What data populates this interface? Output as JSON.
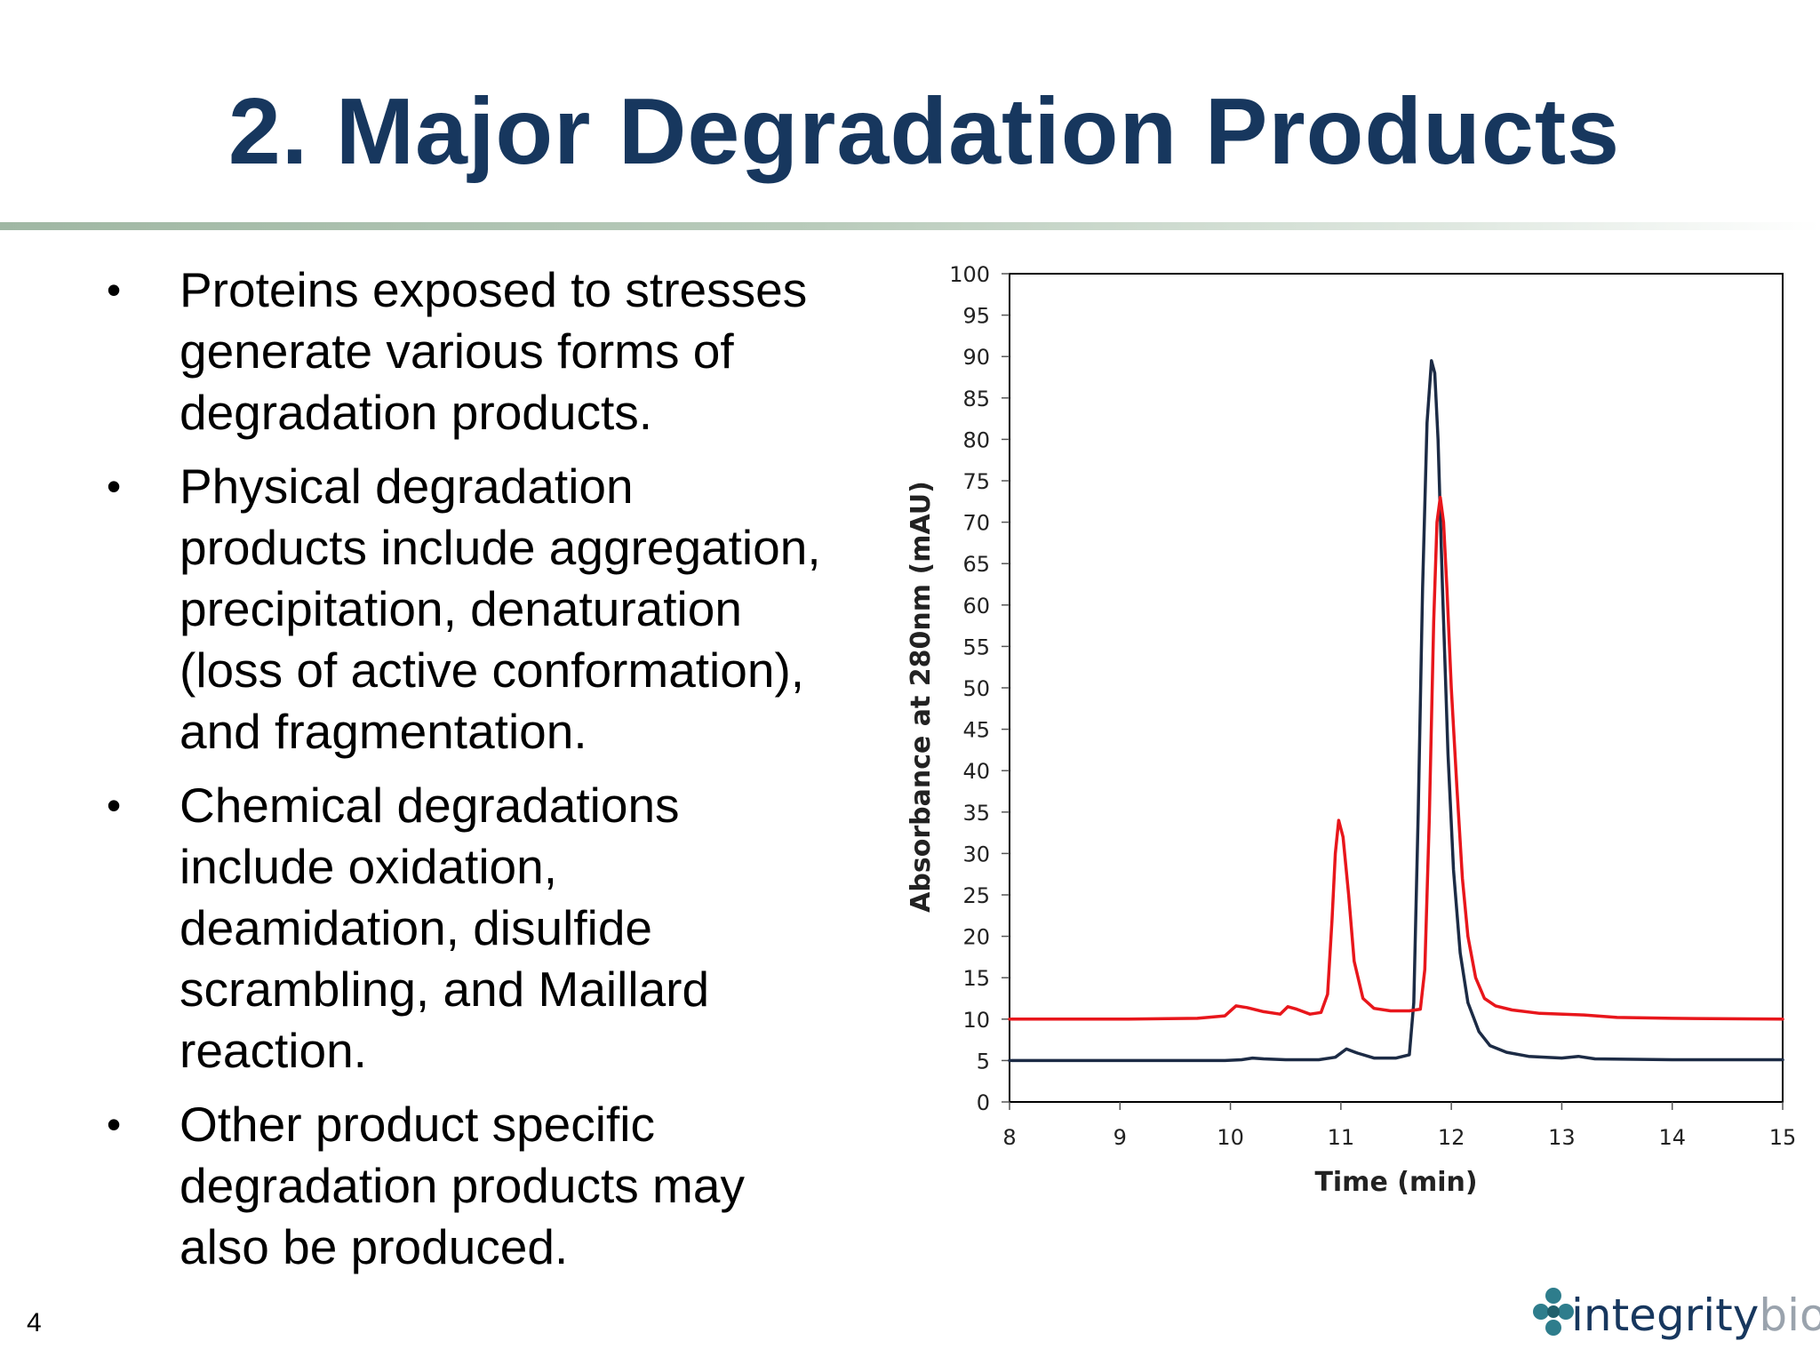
{
  "slide": {
    "title": "2. Major Degradation Products",
    "page_number": "4",
    "logo": {
      "text_primary": "integrity",
      "text_secondary": "bio",
      "icon": "molecule-cross-icon",
      "colors": {
        "primary": "#17375e",
        "secondary": "#9aa3ad",
        "icon": "#2e7d8c"
      }
    },
    "bullets": [
      {
        "text": "Proteins exposed to stresses generate various forms of degradation products.",
        "lines": [
          "Proteins exposed to stresses",
          "generate various forms of",
          "degradation products."
        ]
      },
      {
        "text": "Physical degradation products include aggregation, precipitation, denaturation (loss of active conformation), and fragmentation.",
        "lines": [
          "Physical degradation",
          "products include aggregation,",
          "precipitation, denaturation",
          "(loss of active conformation),",
          "and fragmentation."
        ]
      },
      {
        "text": "Chemical degradations include oxidation, deamidation, disulfide scrambling, and Maillard reaction.",
        "lines": [
          "Chemical degradations",
          "include oxidation,",
          "deamidation, disulfide",
          "scrambling, and Maillard",
          "reaction."
        ]
      },
      {
        "text": "Other product specific degradation products may also be produced.",
        "lines": [
          "Other product specific",
          "degradation products may",
          "also be produced."
        ]
      }
    ],
    "bullet_symbol": "•",
    "colors": {
      "title": "#17375e",
      "divider": "#9fb7a3",
      "text": "#000000"
    }
  },
  "chart_data": {
    "type": "line",
    "xlabel": "Time (min)",
    "ylabel": "Absorbance at 280nm (mAU)",
    "xlim": [
      8,
      15
    ],
    "ylim": [
      0,
      100
    ],
    "xticks": [
      8,
      9,
      10,
      11,
      12,
      13,
      14,
      15
    ],
    "yticks": [
      0,
      5,
      10,
      15,
      20,
      25,
      30,
      35,
      40,
      45,
      50,
      55,
      60,
      65,
      70,
      75,
      80,
      85,
      90,
      95,
      100
    ],
    "grid": false,
    "legend": false,
    "series": [
      {
        "color": "#1c2b45",
        "x": [
          8.0,
          9.0,
          9.95,
          10.1,
          10.2,
          10.3,
          10.5,
          10.8,
          10.95,
          11.05,
          11.15,
          11.3,
          11.5,
          11.62,
          11.66,
          11.7,
          11.74,
          11.78,
          11.82,
          11.85,
          11.88,
          11.92,
          11.97,
          12.02,
          12.08,
          12.15,
          12.25,
          12.35,
          12.5,
          12.7,
          13.0,
          13.15,
          13.3,
          14.0,
          15.0
        ],
        "y": [
          5,
          5,
          5,
          5.1,
          5.3,
          5.2,
          5.1,
          5.1,
          5.4,
          6.4,
          5.9,
          5.3,
          5.3,
          5.7,
          12,
          35,
          62,
          82,
          89.5,
          88,
          80,
          62,
          42,
          28,
          18,
          12,
          8.5,
          6.8,
          6.0,
          5.5,
          5.3,
          5.5,
          5.2,
          5.1,
          5.1
        ]
      },
      {
        "color": "#e8161b",
        "x": [
          8.0,
          9.0,
          9.7,
          9.95,
          10.05,
          10.15,
          10.3,
          10.45,
          10.52,
          10.6,
          10.72,
          10.82,
          10.88,
          10.92,
          10.95,
          10.98,
          11.02,
          11.07,
          11.12,
          11.2,
          11.3,
          11.45,
          11.62,
          11.72,
          11.76,
          11.8,
          11.84,
          11.87,
          11.9,
          11.93,
          11.96,
          12.0,
          12.05,
          12.1,
          12.15,
          12.22,
          12.3,
          12.4,
          12.55,
          12.8,
          13.2,
          13.5,
          14.0,
          15.0
        ],
        "y": [
          10,
          10,
          10.1,
          10.4,
          11.6,
          11.4,
          10.9,
          10.6,
          11.5,
          11.2,
          10.6,
          10.8,
          13,
          22,
          30,
          34,
          32,
          25,
          17,
          12.5,
          11.3,
          11,
          11,
          11.2,
          16,
          34,
          58,
          70,
          73,
          70,
          62,
          50,
          38,
          27,
          20,
          15,
          12.5,
          11.6,
          11.1,
          10.7,
          10.5,
          10.2,
          10.1,
          10.0
        ]
      }
    ]
  }
}
